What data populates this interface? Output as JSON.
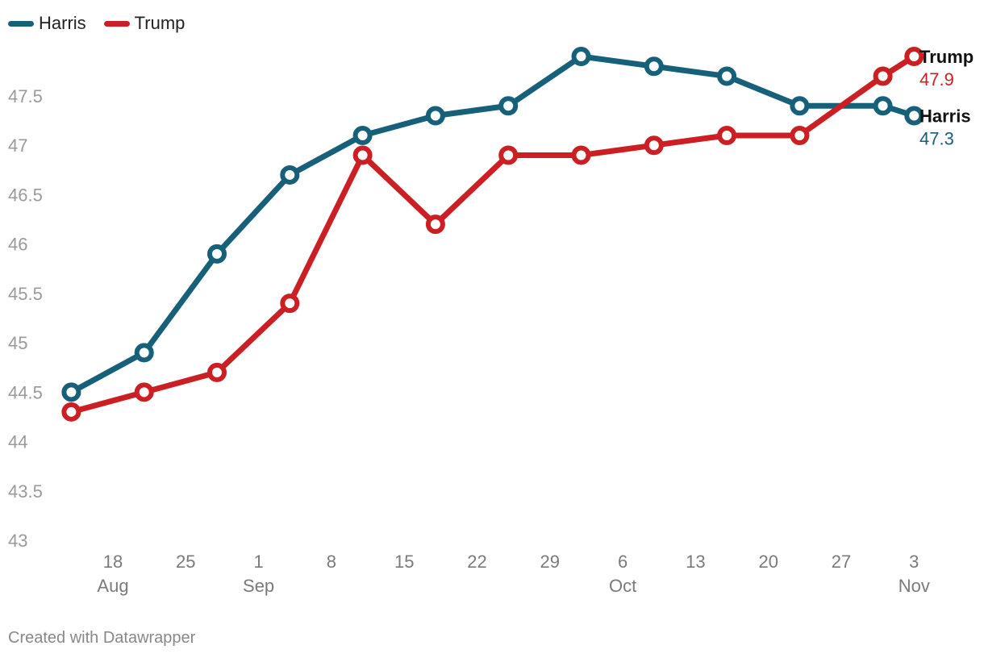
{
  "chart_data": {
    "type": "line",
    "title": "",
    "xlabel": "",
    "ylabel": "",
    "ylim": [
      43,
      47.9
    ],
    "y_ticks": [
      43,
      43.5,
      44,
      44.5,
      45,
      45.5,
      46,
      46.5,
      47,
      47.5
    ],
    "x_ticks": [
      {
        "date": "2024-08-18",
        "day": "18",
        "month": "Aug"
      },
      {
        "date": "2024-08-25",
        "day": "25",
        "month": ""
      },
      {
        "date": "2024-09-01",
        "day": "1",
        "month": "Sep"
      },
      {
        "date": "2024-09-08",
        "day": "8",
        "month": ""
      },
      {
        "date": "2024-09-15",
        "day": "15",
        "month": ""
      },
      {
        "date": "2024-09-22",
        "day": "22",
        "month": ""
      },
      {
        "date": "2024-09-29",
        "day": "29",
        "month": ""
      },
      {
        "date": "2024-10-06",
        "day": "6",
        "month": "Oct"
      },
      {
        "date": "2024-10-13",
        "day": "13",
        "month": ""
      },
      {
        "date": "2024-10-20",
        "day": "20",
        "month": ""
      },
      {
        "date": "2024-10-27",
        "day": "27",
        "month": ""
      },
      {
        "date": "2024-11-03",
        "day": "3",
        "month": "Nov"
      }
    ],
    "x": [
      "2024-08-14",
      "2024-08-21",
      "2024-08-28",
      "2024-09-04",
      "2024-09-11",
      "2024-09-18",
      "2024-09-25",
      "2024-10-02",
      "2024-10-09",
      "2024-10-16",
      "2024-10-23",
      "2024-10-31",
      "2024-11-03"
    ],
    "series": [
      {
        "name": "Harris",
        "color": "#17607a",
        "values": [
          44.5,
          44.9,
          45.9,
          46.7,
          47.1,
          47.3,
          47.4,
          47.9,
          47.8,
          47.7,
          47.4,
          47.4,
          47.3
        ],
        "end_label": "Harris",
        "end_value": "47.3"
      },
      {
        "name": "Trump",
        "color": "#cc1f24",
        "values": [
          44.3,
          44.5,
          44.7,
          45.4,
          46.9,
          46.2,
          46.9,
          46.9,
          47.0,
          47.1,
          47.1,
          47.7,
          47.9
        ],
        "end_label": "Trump",
        "end_value": "47.9"
      }
    ]
  },
  "legend": {
    "items": [
      {
        "label": "Harris",
        "color": "#17607a"
      },
      {
        "label": "Trump",
        "color": "#cc1f24"
      }
    ]
  },
  "footer": {
    "credit": "Created with Datawrapper"
  }
}
